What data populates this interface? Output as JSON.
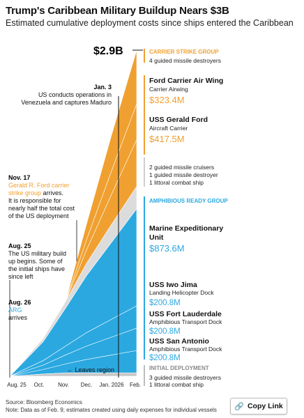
{
  "header": {
    "title": "Trump's Caribbean Military Buildup Nears $3B",
    "subtitle": "Estimated cumulative deployment costs since ships entered the Caribbean"
  },
  "colors": {
    "orange": "#f0a030",
    "blue": "#2ba8e0",
    "gray": "#dcdcdc",
    "base": "#c8c8c8"
  },
  "annotations": {
    "total": "$2.9B",
    "jan3_date": "Jan. 3",
    "jan3_l1": "US conducts operations in",
    "jan3_l2": "Venezuela and captures Maduro",
    "nov17_date": "Nov. 17",
    "nov17_o1": "Gerald R. Ford carrier",
    "nov17_o2": "strike group",
    "nov17_o2b": " arrives.",
    "nov17_l3": "It is responsible for",
    "nov17_l4": "nearly half the total cost",
    "nov17_l5": "of the US deployment",
    "aug25_date": "Aug. 25",
    "aug25_l1": "The US military build",
    "aug25_l2": "up begins. Some of",
    "aug25_l3": "the initial ships have",
    "aug25_l4": "since left",
    "aug26_date": "Aug. 26",
    "aug26_blue": "ARG",
    "aug26_l2": "arrives",
    "leaves_region": "← Leaves region"
  },
  "legend": {
    "csg_header": "CARRIER STRIKE GROUP",
    "csg_sub": "4 guided missile destroyers",
    "ford_wing_name": "Ford Carrier Air Wing",
    "ford_wing_sub": "Carrier Airwing",
    "ford_wing_cost": "$323.4M",
    "ford_name": "USS Gerald Ford",
    "ford_sub": "Aircraft Carrier",
    "ford_cost": "$417.5M",
    "mid_l1": "2 guided missile cruisers",
    "mid_l2": "1 guided missile destroyer",
    "mid_l3": "1 littoral combat ship",
    "arg_header": "AMPHIBIOUS READY GROUP",
    "meu_name_l1": "Marine Expeditionary",
    "meu_name_l2": "Unit",
    "meu_cost": "$873.6M",
    "iwo_name": "USS Iwo Jima",
    "iwo_sub": "Landing Helicopter Dock",
    "iwo_cost": "$200.8M",
    "ftl_name": "USS Fort Lauderdale",
    "ftl_sub": "Amphibious Transport Dock",
    "ftl_cost": "$200.8M",
    "sa_name": "USS San Antonio",
    "sa_sub": "Amphibious Transport Dock",
    "sa_cost": "$200.8M",
    "init_header": "INITIAL DEPLOYMENT",
    "init_l1": "3 guided missile destroyers",
    "init_l2": "1 littoral combat ship",
    "init_l2b": "ship"
  },
  "footer": {
    "source": "Source: Bloomberg Economics",
    "note": "Note: Data as of Feb. 9; estimates created using daily expenses for individual vessels",
    "copy_link": "Copy Link"
  },
  "chart_data": {
    "type": "area",
    "stacked": true,
    "x": [
      "Aug. 25",
      "Oct.",
      "Nov.",
      "Dec.",
      "Jan. 2026",
      "Feb."
    ],
    "x_ticks": [
      "Aug. 25",
      "Oct.",
      "Nov.",
      "Dec.",
      "Jan. 2026",
      "Feb."
    ],
    "ylabel": "",
    "series": [
      {
        "name": "Initial deployment",
        "values": [
          0.0,
          0.02,
          0.03,
          0.03,
          0.03,
          0.03
        ]
      },
      {
        "name": "USS San Antonio",
        "values": [
          0.0,
          0.04,
          0.08,
          0.12,
          0.16,
          0.2
        ]
      },
      {
        "name": "USS Fort Lauderdale",
        "values": [
          0.0,
          0.04,
          0.08,
          0.12,
          0.16,
          0.2
        ]
      },
      {
        "name": "USS Iwo Jima",
        "values": [
          0.0,
          0.04,
          0.08,
          0.12,
          0.16,
          0.2
        ]
      },
      {
        "name": "Marine Expeditionary Unit",
        "values": [
          0.0,
          0.17,
          0.34,
          0.51,
          0.69,
          0.87
        ]
      },
      {
        "name": "Destroyers, cruisers, littoral combat ship",
        "values": [
          0.0,
          0.03,
          0.06,
          0.11,
          0.16,
          0.2
        ]
      },
      {
        "name": "USS Gerald Ford",
        "values": [
          0.0,
          0.0,
          0.0,
          0.12,
          0.27,
          0.42
        ]
      },
      {
        "name": "Ford Carrier Air Wing",
        "values": [
          0.0,
          0.0,
          0.0,
          0.09,
          0.21,
          0.32
        ]
      },
      {
        "name": "Carrier strike group destroyers",
        "values": [
          0.0,
          0.0,
          0.0,
          0.14,
          0.32,
          0.48
        ]
      }
    ],
    "total_label": "$2.9B"
  }
}
